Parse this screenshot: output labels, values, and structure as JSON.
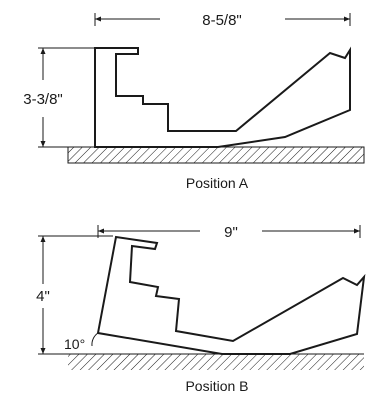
{
  "position_a": {
    "width_label": "8-5/8\"",
    "height_label": "3-3/8\"",
    "caption": "Position A"
  },
  "position_b": {
    "width_label": "9\"",
    "height_label": "4\"",
    "angle_label": "10°",
    "caption": "Position B"
  }
}
